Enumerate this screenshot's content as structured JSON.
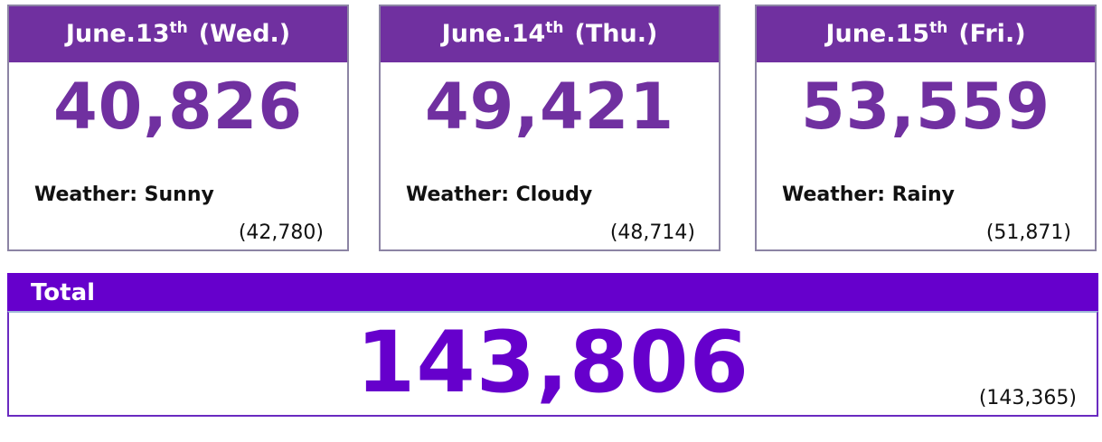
{
  "days": [
    {
      "date": "June.13",
      "suffix": "th",
      "weekday": "(Wed.)",
      "count": "40,826",
      "weather": "Weather: Sunny",
      "previous": "(42,780)"
    },
    {
      "date": "June.14",
      "suffix": "th",
      "weekday": "(Thu.)",
      "count": "49,421",
      "weather": "Weather: Cloudy",
      "previous": "(48,714)"
    },
    {
      "date": "June.15",
      "suffix": "th",
      "weekday": "(Fri.)",
      "count": "53,559",
      "weather": "Weather: Rainy",
      "previous": "(51,871)"
    }
  ],
  "total": {
    "title": "Total",
    "count": "143,806",
    "previous": "(143,365)"
  }
}
